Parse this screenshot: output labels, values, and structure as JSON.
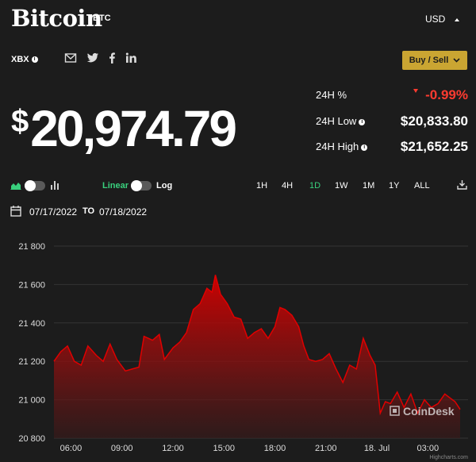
{
  "header": {
    "title": "Bitcoin",
    "ticker": "BTC",
    "currency": "USD"
  },
  "sub": {
    "exchange": "XBX",
    "info_glyph": "i",
    "buy_sell": "Buy / Sell"
  },
  "price": {
    "symbol": "$",
    "value": "20,974.79"
  },
  "stats": {
    "change_label": "24H %",
    "change_value": "-0.99%",
    "low_label": "24H Low",
    "low_value": "$20,833.80",
    "high_label": "24H High",
    "high_value": "$21,652.25"
  },
  "controls": {
    "linear": "Linear",
    "log": "Log",
    "ranges": [
      "1H",
      "4H",
      "1D",
      "1W",
      "1M",
      "1Y",
      "ALL"
    ],
    "active_range": "1D"
  },
  "dates": {
    "from": "07/17/2022",
    "to_word": "TO",
    "to": "07/18/2022"
  },
  "watermark": "CoinDesk",
  "credit": "Highcharts.com",
  "colors": {
    "accent": "#caa532",
    "negative": "#ff3b30",
    "active": "#39d07d",
    "line": "#e00000"
  },
  "icons": [
    "email-icon",
    "twitter-icon",
    "facebook-icon",
    "linkedin-icon",
    "area-chart-icon",
    "bar-chart-icon",
    "calendar-icon",
    "download-icon",
    "chevron-down-icon"
  ],
  "chart_data": {
    "type": "area",
    "ylim": [
      20800,
      21800
    ],
    "yticks": [
      20800,
      21000,
      21200,
      21400,
      21600,
      21800
    ],
    "ytick_labels": [
      "20 800",
      "21 000",
      "21 200",
      "21 400",
      "21 600",
      "21 800"
    ],
    "xlim": [
      5.0,
      28.9
    ],
    "xticks": [
      6,
      9,
      12,
      15,
      18,
      21,
      24,
      27
    ],
    "xtick_labels": [
      "06:00",
      "09:00",
      "12:00",
      "15:00",
      "18:00",
      "21:00",
      "18. Jul",
      "03:00"
    ],
    "grid": true,
    "series": [
      {
        "x": [
          5.0,
          5.4,
          5.8,
          6.2,
          6.6,
          7.0,
          7.5,
          7.9,
          8.3,
          8.7,
          9.2,
          9.6,
          10.0,
          10.3,
          10.8,
          11.2,
          11.5,
          12.0,
          12.4,
          12.8,
          13.2,
          13.6,
          14.0,
          14.3,
          14.5,
          14.8,
          15.2,
          15.6,
          16.0,
          16.4,
          16.8,
          17.2,
          17.6,
          18.0,
          18.3,
          18.6,
          19.0,
          19.4,
          19.7,
          20.0,
          20.4,
          20.8,
          21.2,
          21.6,
          22.0,
          22.4,
          22.8,
          23.2,
          23.6,
          23.9,
          24.2,
          24.5,
          24.8,
          25.2,
          25.6,
          26.0,
          26.4,
          26.8,
          27.2,
          27.6,
          28.0,
          28.3,
          28.6,
          28.9
        ],
        "y": [
          21200,
          21250,
          21280,
          21200,
          21180,
          21280,
          21230,
          21200,
          21290,
          21210,
          21150,
          21160,
          21170,
          21330,
          21310,
          21340,
          21210,
          21270,
          21300,
          21350,
          21470,
          21500,
          21580,
          21560,
          21650,
          21550,
          21500,
          21430,
          21420,
          21320,
          21350,
          21370,
          21320,
          21380,
          21480,
          21470,
          21440,
          21380,
          21280,
          21210,
          21200,
          21210,
          21240,
          21160,
          21090,
          21180,
          21160,
          21320,
          21230,
          21180,
          20930,
          20990,
          20980,
          21040,
          20960,
          21030,
          20930,
          21000,
          20960,
          20980,
          21030,
          21010,
          20990,
          20950
        ]
      }
    ]
  }
}
